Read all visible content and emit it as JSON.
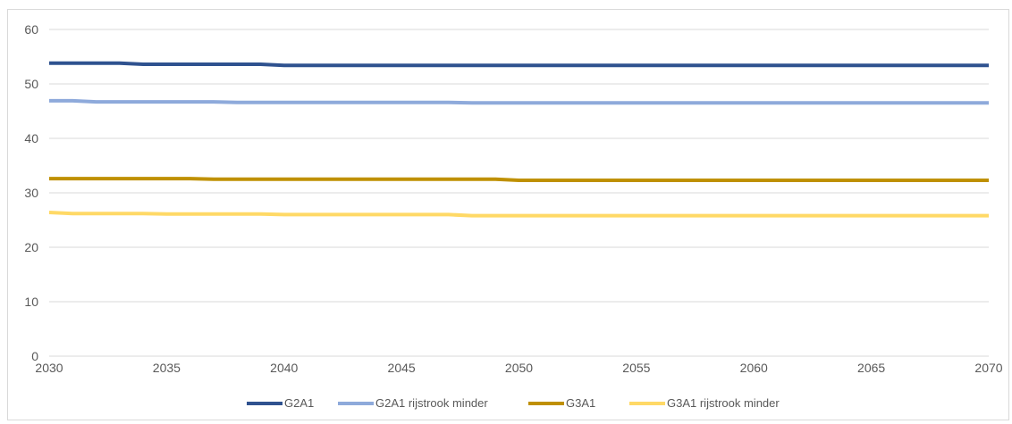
{
  "chart_data": {
    "type": "line",
    "title": "",
    "xlabel": "",
    "ylabel": "",
    "xlim": [
      2030,
      2070
    ],
    "ylim": [
      0,
      60
    ],
    "x_ticks": [
      "2030",
      "2035",
      "2040",
      "2045",
      "2050",
      "2055",
      "2060",
      "2065",
      "2070"
    ],
    "y_ticks": [
      "0",
      "10",
      "20",
      "30",
      "40",
      "50",
      "60"
    ],
    "grid": true,
    "legend_position": "bottom",
    "x": [
      2030,
      2031,
      2032,
      2033,
      2034,
      2035,
      2036,
      2037,
      2038,
      2039,
      2040,
      2041,
      2042,
      2043,
      2044,
      2045,
      2046,
      2047,
      2048,
      2049,
      2050,
      2051,
      2052,
      2053,
      2054,
      2055,
      2056,
      2057,
      2058,
      2059,
      2060,
      2061,
      2062,
      2063,
      2064,
      2065,
      2066,
      2067,
      2068,
      2069,
      2070
    ],
    "series": [
      {
        "name": "G2A1",
        "color": "#2f528f",
        "values": [
          53.8,
          53.8,
          53.8,
          53.8,
          53.6,
          53.6,
          53.6,
          53.6,
          53.6,
          53.6,
          53.4,
          53.4,
          53.4,
          53.4,
          53.4,
          53.4,
          53.4,
          53.4,
          53.4,
          53.4,
          53.4,
          53.4,
          53.4,
          53.4,
          53.4,
          53.4,
          53.4,
          53.4,
          53.4,
          53.4,
          53.4,
          53.4,
          53.4,
          53.4,
          53.4,
          53.4,
          53.4,
          53.4,
          53.4,
          53.4,
          53.4
        ]
      },
      {
        "name": "G2A1 rijstrook minder",
        "color": "#8eaadb",
        "values": [
          46.9,
          46.9,
          46.7,
          46.7,
          46.7,
          46.7,
          46.7,
          46.7,
          46.6,
          46.6,
          46.6,
          46.6,
          46.6,
          46.6,
          46.6,
          46.6,
          46.6,
          46.6,
          46.5,
          46.5,
          46.5,
          46.5,
          46.5,
          46.5,
          46.5,
          46.5,
          46.5,
          46.5,
          46.5,
          46.5,
          46.5,
          46.5,
          46.5,
          46.5,
          46.5,
          46.5,
          46.5,
          46.5,
          46.5,
          46.5,
          46.5
        ]
      },
      {
        "name": "G3A1",
        "color": "#bf9000",
        "values": [
          32.6,
          32.6,
          32.6,
          32.6,
          32.6,
          32.6,
          32.6,
          32.5,
          32.5,
          32.5,
          32.5,
          32.5,
          32.5,
          32.5,
          32.5,
          32.5,
          32.5,
          32.5,
          32.5,
          32.5,
          32.3,
          32.3,
          32.3,
          32.3,
          32.3,
          32.3,
          32.3,
          32.3,
          32.3,
          32.3,
          32.3,
          32.3,
          32.3,
          32.3,
          32.3,
          32.3,
          32.3,
          32.3,
          32.3,
          32.3,
          32.3
        ]
      },
      {
        "name": "G3A1 rijstrook minder",
        "color": "#ffd966",
        "values": [
          26.4,
          26.2,
          26.2,
          26.2,
          26.2,
          26.1,
          26.1,
          26.1,
          26.1,
          26.1,
          26.0,
          26.0,
          26.0,
          26.0,
          26.0,
          26.0,
          26.0,
          26.0,
          25.8,
          25.8,
          25.8,
          25.8,
          25.8,
          25.8,
          25.8,
          25.8,
          25.8,
          25.8,
          25.8,
          25.8,
          25.8,
          25.8,
          25.8,
          25.8,
          25.8,
          25.8,
          25.8,
          25.8,
          25.8,
          25.8,
          25.8
        ]
      }
    ]
  }
}
